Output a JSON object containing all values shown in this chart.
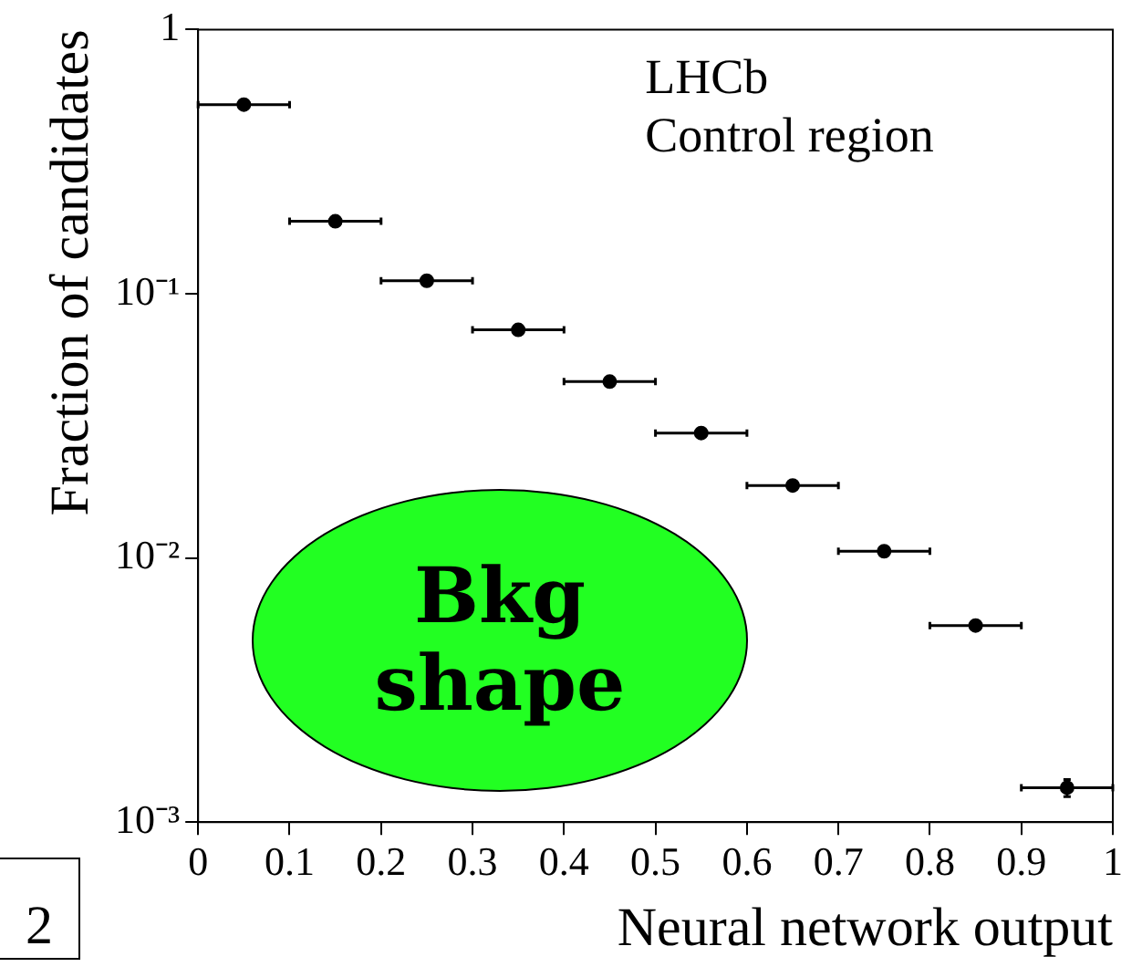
{
  "chart_data": {
    "type": "scatter",
    "xlabel": "Neural network output",
    "ylabel": "Fraction of candidates",
    "annotations": [
      "LHCb",
      "Control region",
      "Bkg shape",
      "2"
    ],
    "x": [
      0.05,
      0.15,
      0.25,
      0.35,
      0.45,
      0.55,
      0.65,
      0.75,
      0.85,
      0.95
    ],
    "series": [
      {
        "color": "#000000",
        "values": [
          0.52,
          0.188,
          0.112,
          0.073,
          0.0465,
          0.0297,
          0.0188,
          0.0106,
          0.00555,
          0.00135
        ],
        "xerrors": [
          0.05,
          0.05,
          0.05,
          0.05,
          0.05,
          0.05,
          0.05,
          0.05,
          0.05,
          0.05
        ],
        "errors": [
          null,
          null,
          null,
          null,
          null,
          null,
          null,
          null,
          null,
          0.0001
        ]
      }
    ],
    "xlim": [
      0,
      1
    ],
    "xticks": [
      0,
      0.1,
      0.2,
      0.3,
      0.4,
      0.5,
      0.6,
      0.7,
      0.8,
      0.9,
      1
    ],
    "ylim": [
      0.001,
      1
    ],
    "yticks": [
      {
        "value": 0.001,
        "label": "10⁻³"
      },
      {
        "value": 0.01,
        "label": "10⁻²"
      },
      {
        "value": 0.1,
        "label": "10⁻¹"
      },
      1
    ],
    "log": "y",
    "grid": false,
    "legend": false,
    "marker": "circle"
  }
}
